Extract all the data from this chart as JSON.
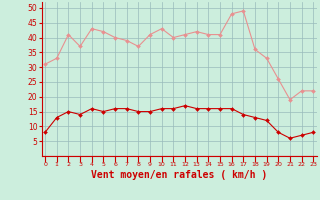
{
  "x": [
    0,
    1,
    2,
    3,
    4,
    5,
    6,
    7,
    8,
    9,
    10,
    11,
    12,
    13,
    14,
    15,
    16,
    17,
    18,
    19,
    20,
    21,
    22,
    23
  ],
  "avg_wind": [
    8,
    13,
    15,
    14,
    16,
    15,
    16,
    16,
    15,
    15,
    16,
    16,
    17,
    16,
    16,
    16,
    16,
    14,
    13,
    12,
    8,
    6,
    7,
    8
  ],
  "gust_wind": [
    31,
    33,
    41,
    37,
    43,
    42,
    40,
    39,
    37,
    41,
    43,
    40,
    41,
    42,
    41,
    41,
    48,
    49,
    36,
    33,
    26,
    19,
    22,
    22
  ],
  "line_color_avg": "#cc0000",
  "line_color_gust": "#e89090",
  "markersize": 2.0,
  "linewidth": 0.8,
  "bg_color": "#cceedd",
  "grid_color": "#99bbbb",
  "xlabel": "Vent moyen/en rafales ( km/h )",
  "xlabel_color": "#cc0000",
  "xlabel_fontsize": 7,
  "tick_color": "#cc0000",
  "axis_color": "#cc0000",
  "ylim": [
    0,
    52
  ],
  "yticks": [
    5,
    10,
    15,
    20,
    25,
    30,
    35,
    40,
    45,
    50
  ],
  "xticks": [
    0,
    1,
    2,
    3,
    4,
    5,
    6,
    7,
    8,
    9,
    10,
    11,
    12,
    13,
    14,
    15,
    16,
    17,
    18,
    19,
    20,
    21,
    22,
    23
  ],
  "xlim": [
    -0.3,
    23.3
  ]
}
